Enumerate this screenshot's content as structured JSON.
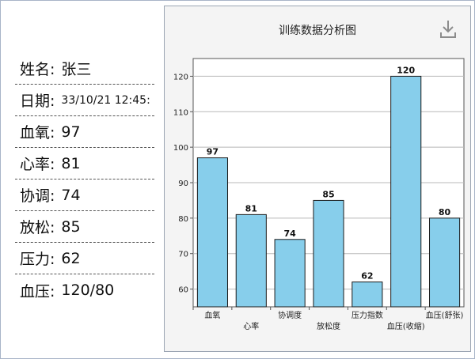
{
  "profile": {
    "name_label": "姓名:",
    "name_value": "张三",
    "date_label": "日期:",
    "date_value": "33/10/21 12:45:",
    "metrics": [
      {
        "label": "血氧:",
        "value": "97"
      },
      {
        "label": "心率:",
        "value": "81"
      },
      {
        "label": "协调:",
        "value": "74"
      },
      {
        "label": "放松:",
        "value": "85"
      },
      {
        "label": "压力:",
        "value": "62"
      },
      {
        "label": "血压:",
        "value": "120/80"
      }
    ]
  },
  "chart_panel": {
    "download_icon": "download-icon"
  },
  "chart_data": {
    "type": "bar",
    "title": "训练数据分析图",
    "categories": [
      "血氧",
      "心率",
      "协调度",
      "放松度",
      "压力指数",
      "血压(收缩)",
      "血压(舒张)"
    ],
    "values": [
      97,
      81,
      74,
      85,
      62,
      120,
      80
    ],
    "ylim": [
      55,
      125
    ],
    "yticks": [
      60,
      70,
      80,
      90,
      100,
      110,
      120
    ],
    "grid": true,
    "colors": {
      "bar": "#87ceeb",
      "bar_stroke": "#1a1a1a",
      "grid": "#b8b8b8",
      "axis": "#555555"
    }
  }
}
